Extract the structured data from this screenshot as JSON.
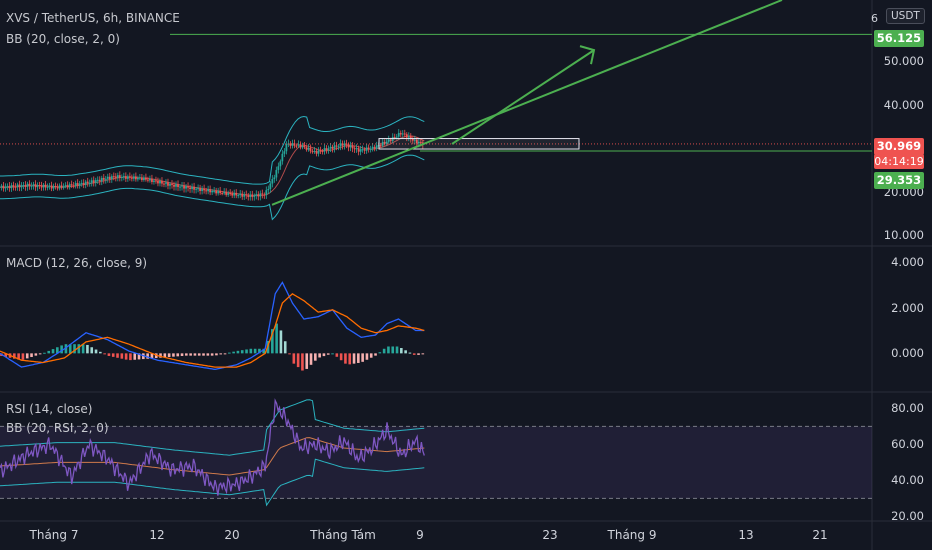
{
  "header": {
    "title": "XVS / TetherUS, 6h, BINANCE",
    "bb_main": "BB (20, close, 2, 0)",
    "macd": "MACD (12, 26, close, 9)",
    "rsi": "RSI (14, close)",
    "bb_rsi": "BB (20, RSI, 2, 0)",
    "currency": "USDT",
    "corner_digit": "6"
  },
  "price_axis": [
    "50.000",
    "40.000",
    "20.000",
    "10.000"
  ],
  "macd_axis": [
    "4.000",
    "2.000",
    "0.000"
  ],
  "rsi_axis": [
    "80.00",
    "60.00",
    "40.00",
    "20.00"
  ],
  "tags": {
    "target": "56.125",
    "current": "30.969",
    "countdown": "04:14:19",
    "support": "29.353"
  },
  "x_axis": [
    "Tháng 7",
    "12",
    "20",
    "Tháng Tám",
    "9",
    "23",
    "Tháng 9",
    "13",
    "21"
  ],
  "colors": {
    "background": "#131722",
    "up": "#26a69a",
    "down": "#ef5350",
    "bollinger": "#2bb3c0",
    "drawing_green": "#4caf50",
    "macd_line": "#2962ff",
    "signal_line": "#ff6d00",
    "rsi_line": "#7e57c2",
    "rsi_band": "#7e57c2"
  },
  "chart_data": [
    {
      "type": "candlestick",
      "title": "XVS / TetherUS, 6h, BINANCE",
      "unit": "USDT",
      "x_ticks": [
        "Tháng 7",
        "12",
        "20",
        "Tháng Tám",
        "9",
        "23",
        "Tháng 9",
        "13",
        "21"
      ],
      "ylim": [
        8,
        64
      ],
      "y_ticks": [
        10,
        20,
        30,
        40,
        50
      ],
      "price_path_points": [
        [
          0,
          21.0
        ],
        [
          20,
          21.5
        ],
        [
          40,
          21.0
        ],
        [
          60,
          22.0
        ],
        [
          80,
          23.5
        ],
        [
          100,
          23.0
        ],
        [
          120,
          21.5
        ],
        [
          140,
          20.5
        ],
        [
          160,
          19.5
        ],
        [
          175,
          19.0
        ],
        [
          185,
          19.5
        ],
        [
          192,
          24.0
        ],
        [
          200,
          31.0
        ],
        [
          210,
          30.5
        ],
        [
          220,
          29.0
        ],
        [
          230,
          30.0
        ],
        [
          240,
          31.0
        ],
        [
          250,
          29.5
        ],
        [
          260,
          30.0
        ],
        [
          270,
          31.5
        ],
        [
          280,
          33.5
        ],
        [
          290,
          31.5
        ],
        [
          296,
          30.97
        ]
      ],
      "levels": {
        "target": 56.125,
        "current": 30.969,
        "support": 29.353
      },
      "trendline_start": 17.0,
      "trendline_end_above": 64,
      "projection_arrow_tip": 52.5,
      "consolidation_box": [
        29.8,
        32.2
      ]
    },
    {
      "type": "line",
      "title": "MACD (12, 26, close, 9)",
      "ylim": [
        -1.6,
        4.6
      ],
      "y_ticks": [
        0,
        2,
        4
      ],
      "series": [
        {
          "name": "MACD",
          "values": [
            [
              0,
              0.0
            ],
            [
              15,
              -0.6
            ],
            [
              30,
              -0.4
            ],
            [
              45,
              0.2
            ],
            [
              60,
              0.9
            ],
            [
              75,
              0.6
            ],
            [
              90,
              0.1
            ],
            [
              110,
              -0.3
            ],
            [
              130,
              -0.5
            ],
            [
              150,
              -0.7
            ],
            [
              165,
              -0.5
            ],
            [
              175,
              -0.2
            ],
            [
              185,
              0.2
            ],
            [
              192,
              2.6
            ],
            [
              197,
              3.1
            ],
            [
              204,
              2.2
            ],
            [
              212,
              1.5
            ],
            [
              222,
              1.6
            ],
            [
              232,
              1.9
            ],
            [
              242,
              1.1
            ],
            [
              252,
              0.7
            ],
            [
              262,
              0.8
            ],
            [
              270,
              1.3
            ],
            [
              278,
              1.5
            ],
            [
              290,
              1.0
            ],
            [
              296,
              1.0
            ]
          ]
        },
        {
          "name": "Signal",
          "values": [
            [
              0,
              0.1
            ],
            [
              15,
              -0.3
            ],
            [
              30,
              -0.4
            ],
            [
              45,
              -0.2
            ],
            [
              60,
              0.5
            ],
            [
              75,
              0.7
            ],
            [
              90,
              0.4
            ],
            [
              110,
              -0.1
            ],
            [
              130,
              -0.4
            ],
            [
              150,
              -0.6
            ],
            [
              165,
              -0.6
            ],
            [
              175,
              -0.4
            ],
            [
              185,
              0.0
            ],
            [
              192,
              1.2
            ],
            [
              197,
              2.2
            ],
            [
              204,
              2.6
            ],
            [
              212,
              2.3
            ],
            [
              222,
              1.8
            ],
            [
              232,
              1.9
            ],
            [
              242,
              1.6
            ],
            [
              252,
              1.1
            ],
            [
              262,
              0.9
            ],
            [
              270,
              1.0
            ],
            [
              278,
              1.2
            ],
            [
              290,
              1.1
            ],
            [
              296,
              1.0
            ]
          ]
        },
        {
          "name": "Histogram",
          "values": [
            [
              0,
              -0.1
            ],
            [
              15,
              -0.3
            ],
            [
              30,
              0.0
            ],
            [
              45,
              0.4
            ],
            [
              60,
              0.4
            ],
            [
              75,
              -0.1
            ],
            [
              90,
              -0.3
            ],
            [
              110,
              -0.2
            ],
            [
              130,
              -0.1
            ],
            [
              150,
              -0.1
            ],
            [
              165,
              0.1
            ],
            [
              175,
              0.2
            ],
            [
              185,
              0.2
            ],
            [
              192,
              1.4
            ],
            [
              197,
              0.9
            ],
            [
              204,
              -0.4
            ],
            [
              212,
              -0.8
            ],
            [
              222,
              -0.2
            ],
            [
              232,
              0.0
            ],
            [
              242,
              -0.5
            ],
            [
              252,
              -0.4
            ],
            [
              262,
              -0.1
            ],
            [
              270,
              0.3
            ],
            [
              278,
              0.3
            ],
            [
              290,
              -0.1
            ],
            [
              296,
              0.0
            ]
          ]
        }
      ]
    },
    {
      "type": "line",
      "title": "RSI (14, close)",
      "ylim": [
        18,
        88
      ],
      "y_ticks": [
        20,
        40,
        60,
        80
      ],
      "levels": [
        70,
        30
      ],
      "series": [
        {
          "name": "RSI",
          "values": [
            [
              0,
              45
            ],
            [
              20,
              55
            ],
            [
              35,
              60
            ],
            [
              50,
              42
            ],
            [
              62,
              60
            ],
            [
              75,
              52
            ],
            [
              90,
              38
            ],
            [
              105,
              55
            ],
            [
              120,
              46
            ],
            [
              135,
              48
            ],
            [
              150,
              36
            ],
            [
              165,
              38
            ],
            [
              175,
              42
            ],
            [
              185,
              48
            ],
            [
              192,
              82
            ],
            [
              200,
              74
            ],
            [
              210,
              58
            ],
            [
              220,
              60
            ],
            [
              230,
              56
            ],
            [
              240,
              62
            ],
            [
              250,
              52
            ],
            [
              260,
              58
            ],
            [
              270,
              68
            ],
            [
              280,
              54
            ],
            [
              290,
              62
            ],
            [
              296,
              55
            ]
          ]
        },
        {
          "name": "BB (20, RSI, 2, 0)",
          "values": [
            [
              0,
              48
            ],
            [
              40,
              50
            ],
            [
              80,
              50
            ],
            [
              120,
              46
            ],
            [
              160,
              43
            ],
            [
              185,
              46
            ],
            [
              195,
              58
            ],
            [
              215,
              64
            ],
            [
              240,
              58
            ],
            [
              270,
              56
            ],
            [
              296,
              58
            ]
          ]
        }
      ]
    }
  ]
}
